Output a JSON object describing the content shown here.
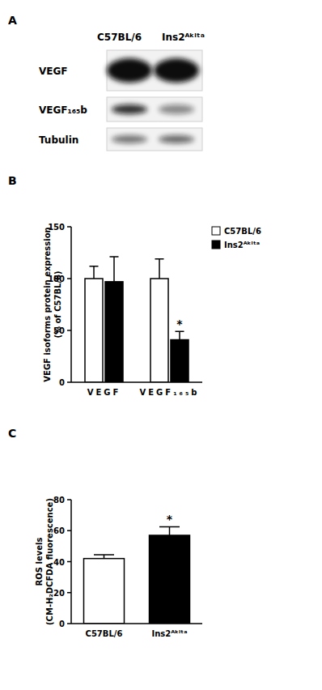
{
  "blot": {
    "panel_label": "A",
    "lanes": [
      "C57BL/6",
      "Ins2ᴬᵏⁱᵗᵃ"
    ],
    "rows": [
      "VEGF",
      "VEGF₁₆₅b",
      "Tubulin"
    ]
  },
  "chart_data": [
    {
      "type": "bar",
      "panel_label": "B",
      "categories": [
        "VEGF",
        "VEGF₁₆₅b"
      ],
      "y_label": [
        "VEGF isoforms protein expression",
        "(% of C57BL/6)"
      ],
      "series": [
        {
          "name": "C57BL/6",
          "color": "#ffffff",
          "values": [
            100,
            100
          ],
          "errors": [
            12,
            19
          ]
        },
        {
          "name": "Ins2ᴬᵏⁱᵗᵃ",
          "color": "#000000",
          "values": [
            97,
            41
          ],
          "errors": [
            24,
            8
          ]
        }
      ],
      "ylim": [
        0,
        150
      ],
      "yticks": [
        0,
        50,
        100,
        150
      ],
      "legend": "right",
      "annotations": [
        {
          "text": "*",
          "series": 1,
          "index": 1
        }
      ]
    },
    {
      "type": "bar",
      "panel_label": "C",
      "categories": [
        "C57BL/6",
        "Ins2ᴬᵏⁱᵗᵃ"
      ],
      "y_label": [
        "ROS levels",
        "(CM-H₂DCFDA fluorescence)"
      ],
      "values": [
        42,
        57
      ],
      "errors": [
        2.5,
        5.5
      ],
      "colors": [
        "#ffffff",
        "#000000"
      ],
      "ylim": [
        0,
        80
      ],
      "yticks": [
        0,
        20,
        40,
        60,
        80
      ],
      "annotations": [
        {
          "text": "*",
          "index": 1
        }
      ]
    }
  ]
}
